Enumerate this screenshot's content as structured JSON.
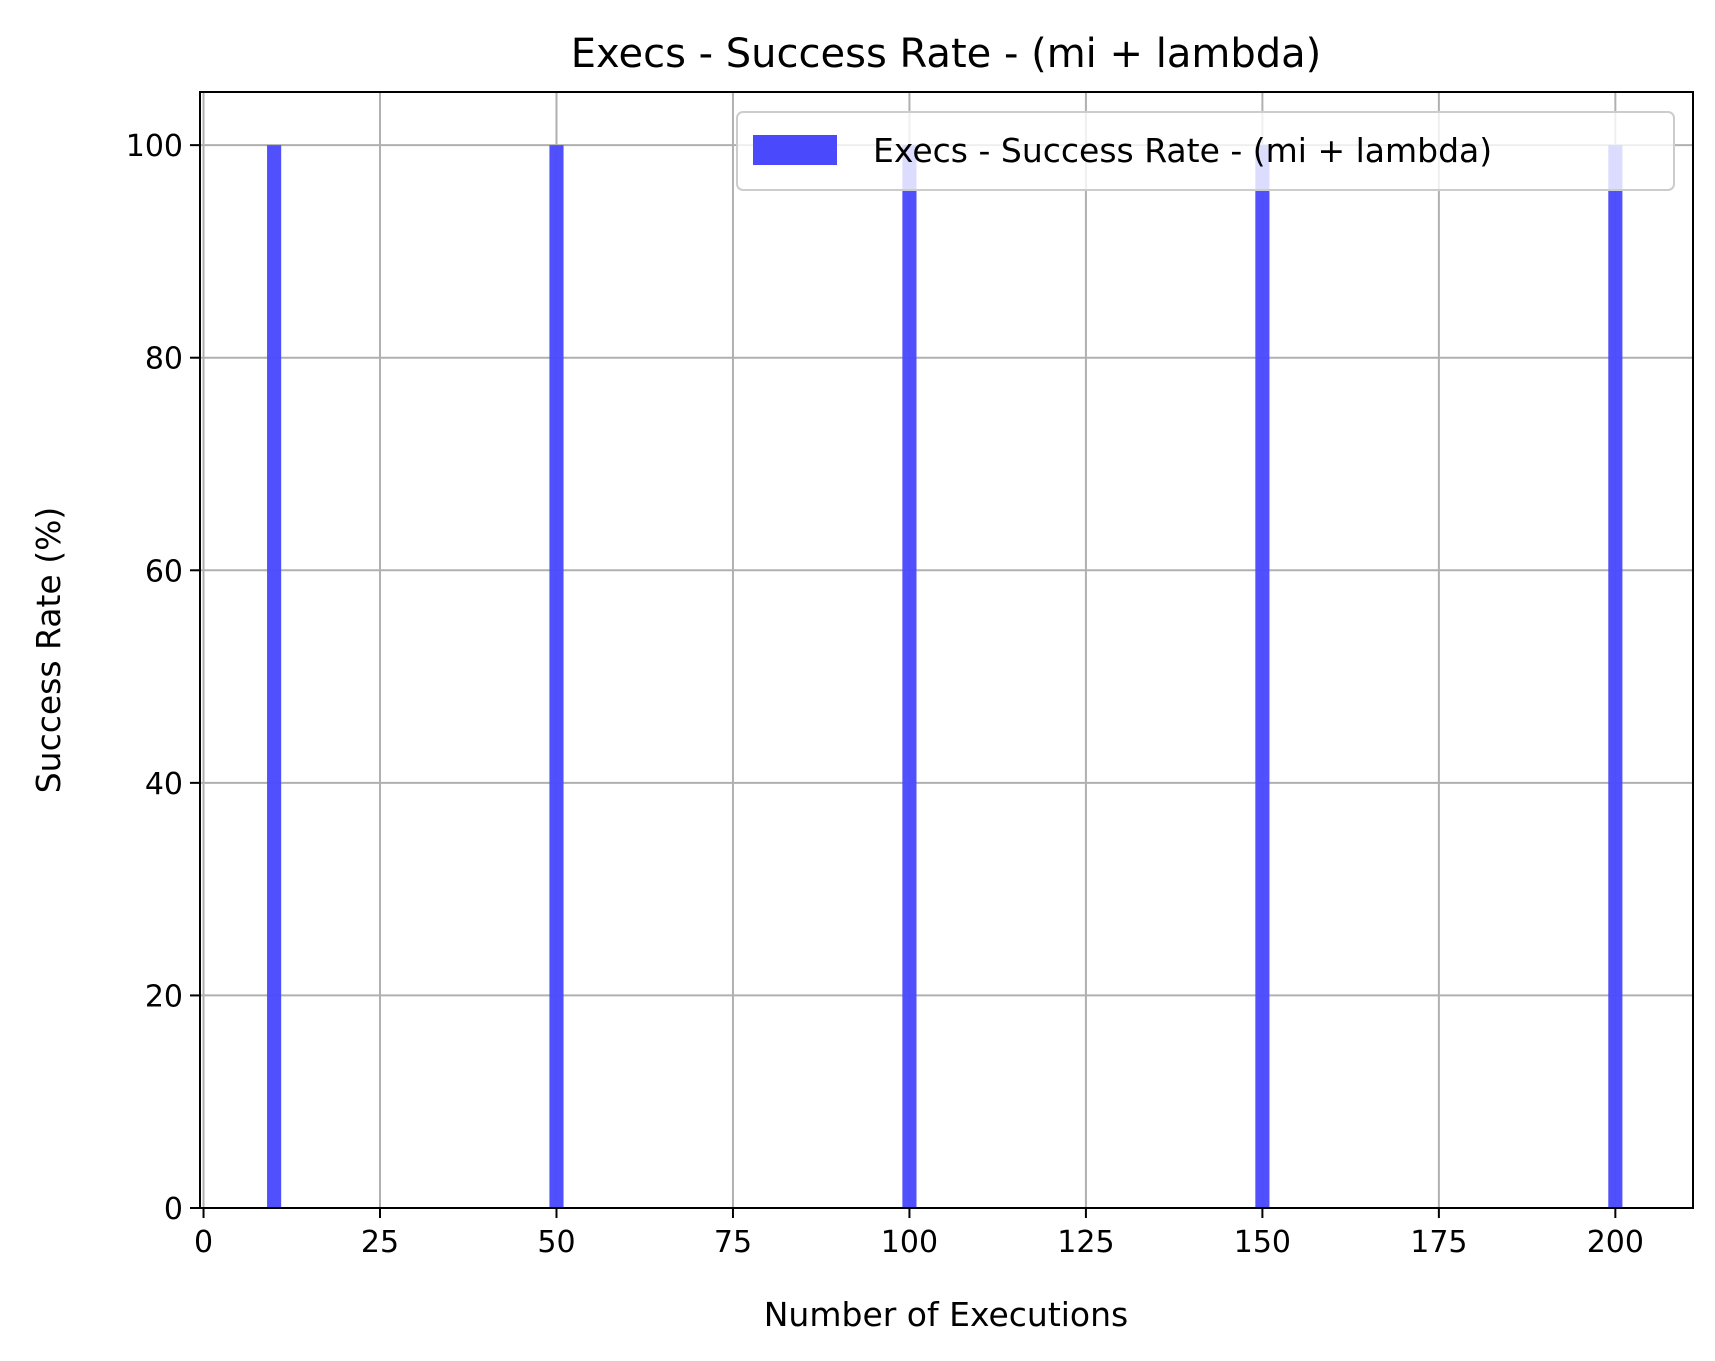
{
  "chart_data": {
    "type": "bar",
    "title": "Execs - Success Rate - (mi + lambda)",
    "xlabel": "Number of Executions",
    "ylabel": "Success Rate (%)",
    "x": [
      10,
      50,
      100,
      150,
      200
    ],
    "series": [
      {
        "name": "Execs - Success Rate - (mi + lambda)",
        "color": "#4a4afc",
        "values": [
          100,
          100,
          100,
          100,
          100
        ]
      }
    ],
    "bar_width": 2,
    "xlim": [
      -0.5,
      211
    ],
    "ylim": [
      0,
      105
    ],
    "xticks": [
      0,
      25,
      50,
      75,
      100,
      125,
      150,
      175,
      200
    ],
    "yticks": [
      0,
      20,
      40,
      60,
      80,
      100
    ],
    "grid": true,
    "legend_position": "top-right"
  }
}
